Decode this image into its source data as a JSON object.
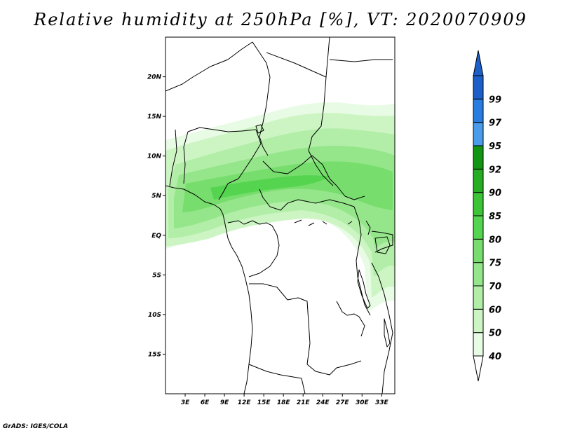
{
  "title": "Relative humidity at 250hPa [%], VT: 2020070909",
  "credit": "GrADS: IGES/COLA",
  "map": {
    "lon_range": [
      0,
      35
    ],
    "lat_range": [
      -20,
      25
    ],
    "lat_ticks": [
      {
        "value": 20,
        "label": "20N"
      },
      {
        "value": 15,
        "label": "15N"
      },
      {
        "value": 10,
        "label": "10N"
      },
      {
        "value": 5,
        "label": "5N"
      },
      {
        "value": 0,
        "label": "EQ"
      },
      {
        "value": -5,
        "label": "5S"
      },
      {
        "value": -10,
        "label": "10S"
      },
      {
        "value": -15,
        "label": "15S"
      }
    ],
    "lon_ticks": [
      {
        "value": 3,
        "label": "3E"
      },
      {
        "value": 6,
        "label": "6E"
      },
      {
        "value": 9,
        "label": "9E"
      },
      {
        "value": 12,
        "label": "12E"
      },
      {
        "value": 15,
        "label": "15E"
      },
      {
        "value": 18,
        "label": "18E"
      },
      {
        "value": 21,
        "label": "21E"
      },
      {
        "value": 24,
        "label": "24E"
      },
      {
        "value": 27,
        "label": "27E"
      },
      {
        "value": 30,
        "label": "30E"
      },
      {
        "value": 33,
        "label": "33E"
      }
    ]
  },
  "colorbar": {
    "levels": [
      {
        "label": "40",
        "color": "#e8fbe4"
      },
      {
        "label": "50",
        "color": "#cdf5c4"
      },
      {
        "label": "60",
        "color": "#b2eea8"
      },
      {
        "label": "70",
        "color": "#95e68a"
      },
      {
        "label": "75",
        "color": "#77de6e"
      },
      {
        "label": "80",
        "color": "#55d44f"
      },
      {
        "label": "85",
        "color": "#3cc436"
      },
      {
        "label": "90",
        "color": "#27ad24"
      },
      {
        "label": "92",
        "color": "#139514"
      },
      {
        "label": "95",
        "color": "#4a9be8"
      },
      {
        "label": "97",
        "color": "#2a7de0"
      },
      {
        "label": "99",
        "color": "#1d5fc8"
      }
    ],
    "low_extend_color": "#ffffff",
    "high_extend_color": "#1d5fc8"
  }
}
